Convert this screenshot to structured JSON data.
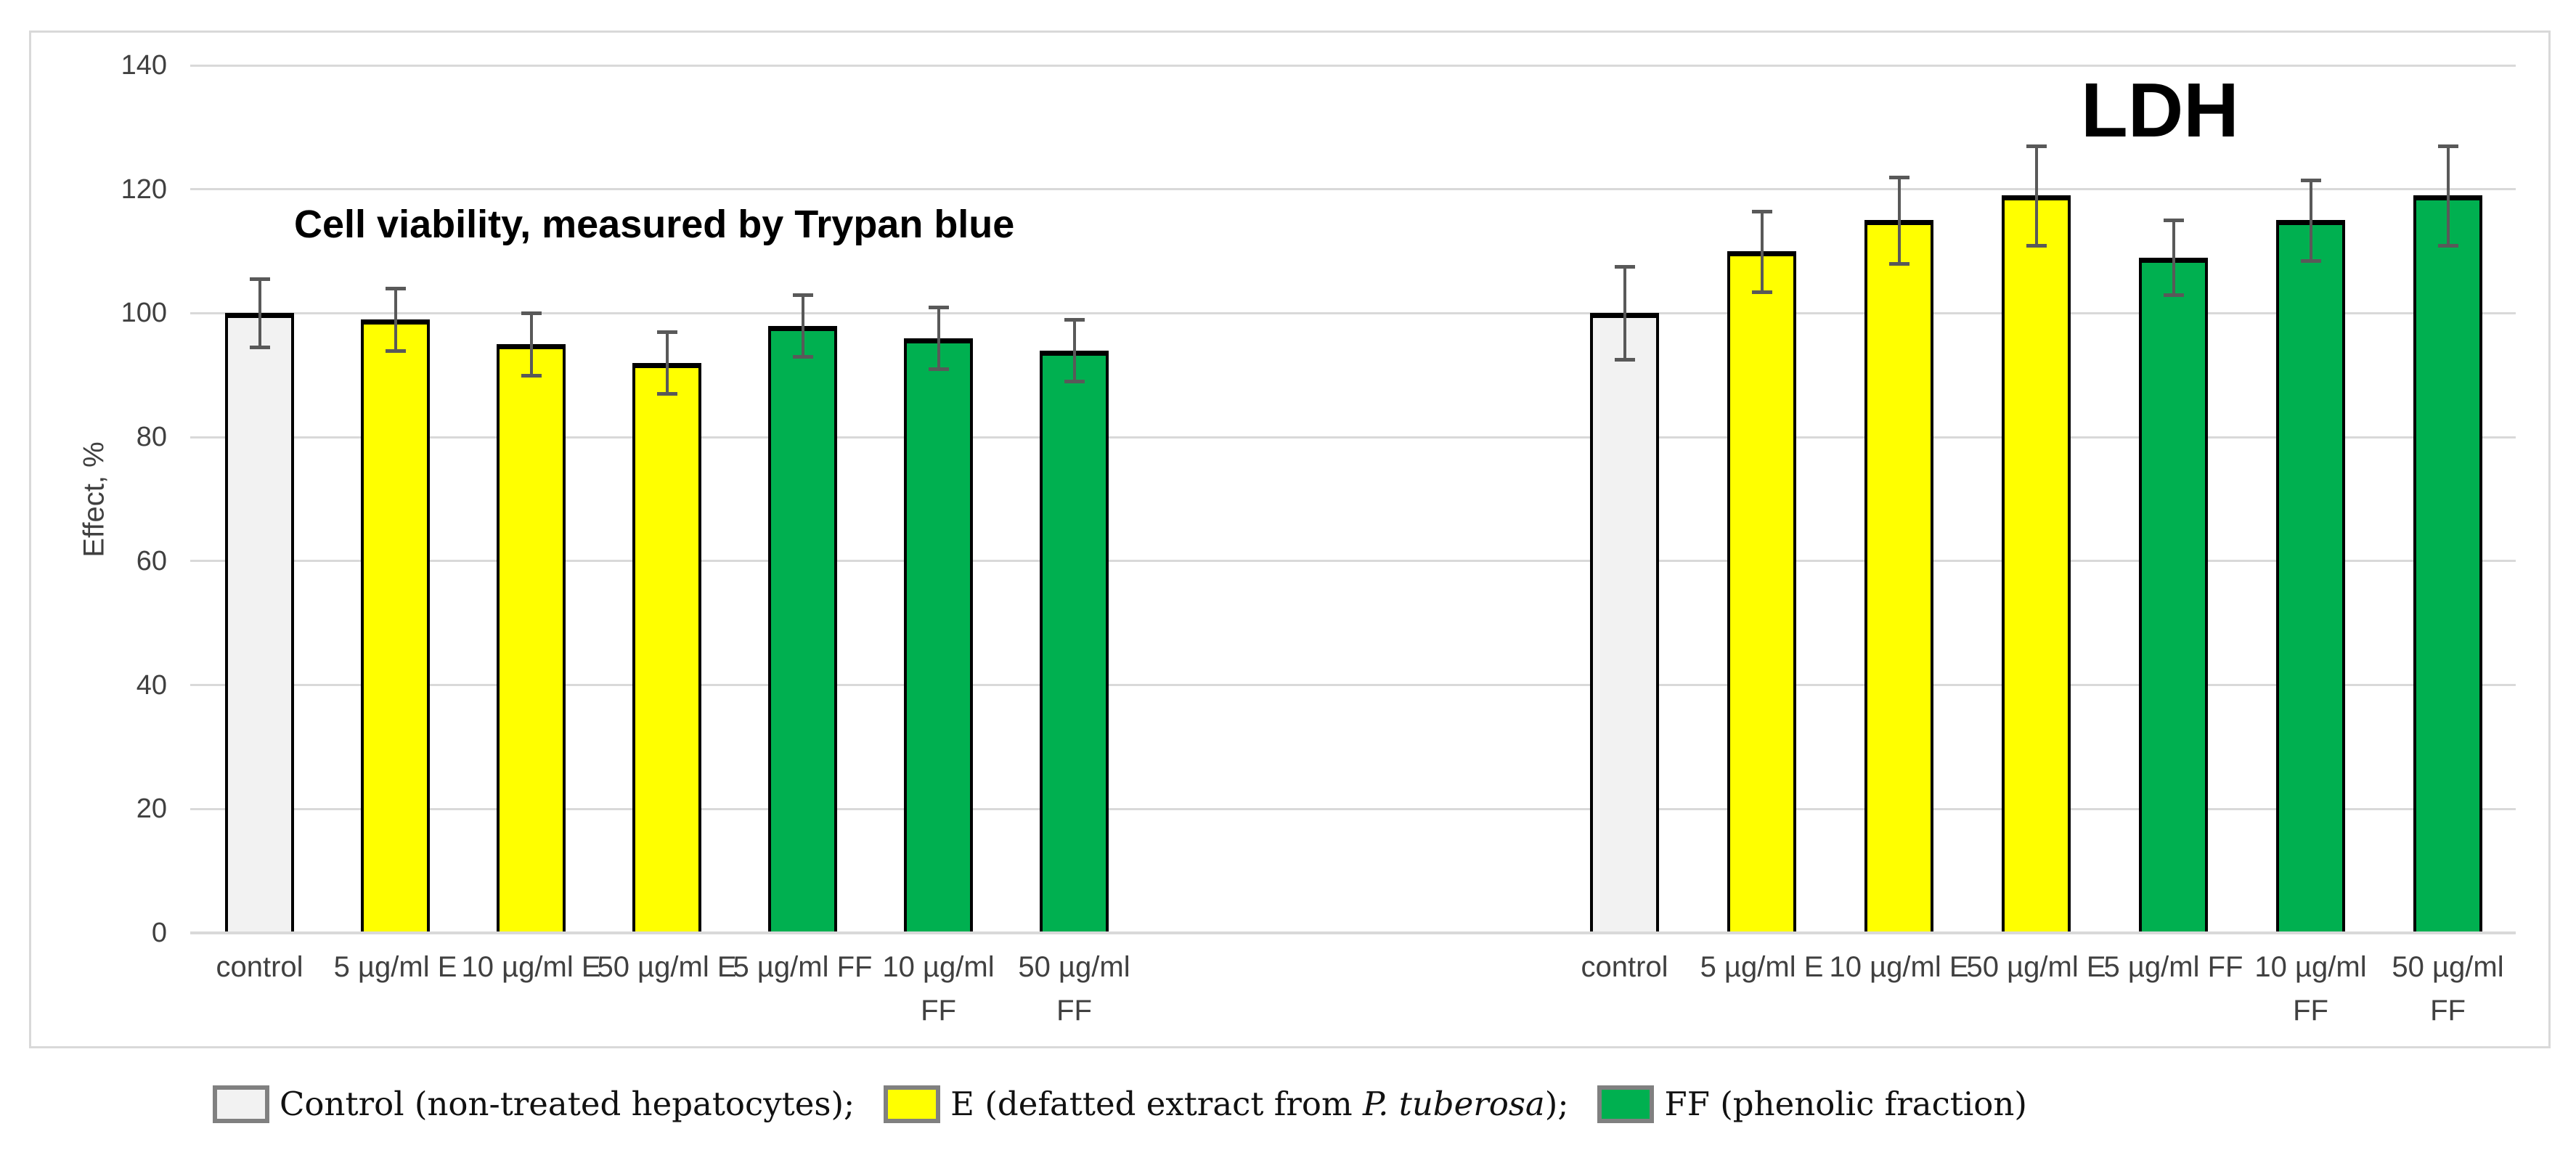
{
  "style": {
    "background": "#FFFFFF",
    "frame_border_color": "#D9D9D9",
    "grid_color": "#D9D9D9",
    "bar_border_color": "#000000",
    "error_bar_color": "#595959",
    "text_color": "#404040"
  },
  "chart_data": {
    "type": "bar",
    "title_left": "Cell viability, measured by Trypan blue",
    "title_right": "LDH",
    "ylabel": "Effect, %",
    "ylim": [
      0,
      140
    ],
    "yticks": [
      0,
      20,
      40,
      60,
      80,
      100,
      120,
      140
    ],
    "grid": true,
    "legend_position": "bottom",
    "series_colors": {
      "control": "#F2F2F2",
      "E": "#FFFF00",
      "FF": "#00B050"
    },
    "groups": [
      {
        "name": "Cell viability, measured by Trypan blue",
        "categories": [
          "control",
          "5 µg/ml E",
          "10 µg/ml E",
          "50 µg/ml E",
          "5 µg/ml FF",
          "10 µg/ml FF",
          "50 µg/ml FF"
        ],
        "bars": [
          {
            "label_lines": [
              "control"
            ],
            "value": 100,
            "err": 5.5,
            "series": "control"
          },
          {
            "label_lines": [
              "5 µg/ml E"
            ],
            "value": 99,
            "err": 5,
            "series": "E"
          },
          {
            "label_lines": [
              "10 µg/ml E"
            ],
            "value": 95,
            "err": 5,
            "series": "E"
          },
          {
            "label_lines": [
              "50 µg/ml E"
            ],
            "value": 92,
            "err": 5,
            "series": "E"
          },
          {
            "label_lines": [
              "5 µg/ml FF"
            ],
            "value": 98,
            "err": 5,
            "series": "FF"
          },
          {
            "label_lines": [
              "10 µg/ml",
              "FF"
            ],
            "value": 96,
            "err": 5,
            "series": "FF"
          },
          {
            "label_lines": [
              "50 µg/ml",
              "FF"
            ],
            "value": 94,
            "err": 5,
            "series": "FF"
          }
        ]
      },
      {
        "name": "LDH",
        "categories": [
          "control",
          "5 µg/ml E",
          "10 µg/ml E",
          "50 µg/ml E",
          "5 µg/ml FF",
          "10 µg/ml FF",
          "50 µg/ml FF"
        ],
        "bars": [
          {
            "label_lines": [
              "control"
            ],
            "value": 100,
            "err": 7.5,
            "series": "control"
          },
          {
            "label_lines": [
              "5 µg/ml E"
            ],
            "value": 110,
            "err": 6.5,
            "series": "E"
          },
          {
            "label_lines": [
              "10 µg/ml E"
            ],
            "value": 115,
            "err": 7,
            "series": "E"
          },
          {
            "label_lines": [
              "50 µg/ml E"
            ],
            "value": 119,
            "err": 8,
            "series": "E"
          },
          {
            "label_lines": [
              "5 µg/ml FF"
            ],
            "value": 109,
            "err": 6,
            "series": "FF"
          },
          {
            "label_lines": [
              "10 µg/ml",
              "FF"
            ],
            "value": 115,
            "err": 6.5,
            "series": "FF"
          },
          {
            "label_lines": [
              "50 µg/ml",
              "FF"
            ],
            "value": 119,
            "err": 8,
            "series": "FF"
          }
        ]
      }
    ],
    "legend": [
      {
        "series": "control",
        "text_parts": [
          {
            "t": "Control (non-treated hepatocytes);"
          }
        ]
      },
      {
        "series": "E",
        "text_parts": [
          {
            "t": "E (defatted extract from "
          },
          {
            "t": "P. tuberosa",
            "italic": true
          },
          {
            "t": ");"
          }
        ]
      },
      {
        "series": "FF",
        "text_parts": [
          {
            "t": "FF (phenolic fraction)"
          }
        ]
      }
    ]
  }
}
